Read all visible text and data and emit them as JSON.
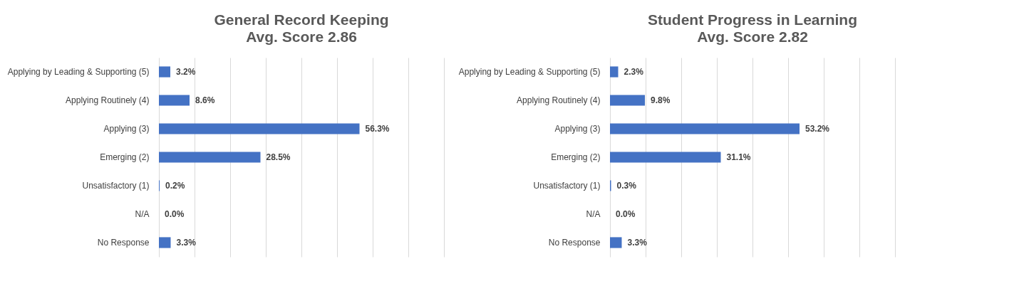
{
  "chart_data": [
    {
      "type": "bar",
      "orientation": "horizontal",
      "title": "General Record Keeping",
      "subtitle": "Avg. Score 2.86",
      "categories": [
        "Applying by Leading & Supporting (5)",
        "Applying Routinely (4)",
        "Applying (3)",
        "Emerging (2)",
        "Unsatisfactory (1)",
        "N/A",
        "No Response"
      ],
      "values": [
        3.2,
        8.6,
        56.3,
        28.5,
        0.2,
        0.0,
        3.3
      ],
      "value_labels": [
        "3.2%",
        "8.6%",
        "56.3%",
        "28.5%",
        "0.2%",
        "0.0%",
        "3.3%"
      ],
      "color": "#4472c4",
      "xlim": [
        0,
        80
      ],
      "xticks": [
        {
          "value": 0,
          "label": null
        },
        {
          "value": 10,
          "label": null
        },
        {
          "value": 20,
          "label": null
        },
        {
          "value": 30,
          "label": null
        },
        {
          "value": 40,
          "label": null
        },
        {
          "value": 50,
          "label": null
        },
        {
          "value": 60,
          "label": null
        },
        {
          "value": 70,
          "label": null
        },
        {
          "value": 80,
          "label": null
        }
      ],
      "grid": "x",
      "tick_labels": "y"
    },
    {
      "type": "bar",
      "orientation": "horizontal",
      "title": "Student Progress in Learning",
      "subtitle": "Avg. Score 2.82",
      "categories": [
        "Applying by Leading & Supporting (5)",
        "Applying Routinely (4)",
        "Applying (3)",
        "Emerging (2)",
        "Unsatisfactory (1)",
        "N/A",
        "No Response"
      ],
      "values": [
        2.3,
        9.8,
        53.2,
        31.1,
        0.3,
        0.0,
        3.3
      ],
      "value_labels": [
        "2.3%",
        "9.8%",
        "53.2%",
        "31.1%",
        "0.3%",
        "0.0%",
        "3.3%"
      ],
      "color": "#4472c4",
      "xlim": [
        0,
        80
      ],
      "xticks": [
        {
          "value": 0,
          "label": null
        },
        {
          "value": 10,
          "label": null
        },
        {
          "value": 20,
          "label": null
        },
        {
          "value": 30,
          "label": null
        },
        {
          "value": 40,
          "label": null
        },
        {
          "value": 50,
          "label": null
        },
        {
          "value": 60,
          "label": null
        },
        {
          "value": 70,
          "label": null
        },
        {
          "value": 80,
          "label": null
        }
      ],
      "grid": "x",
      "tick_labels": "y"
    }
  ]
}
